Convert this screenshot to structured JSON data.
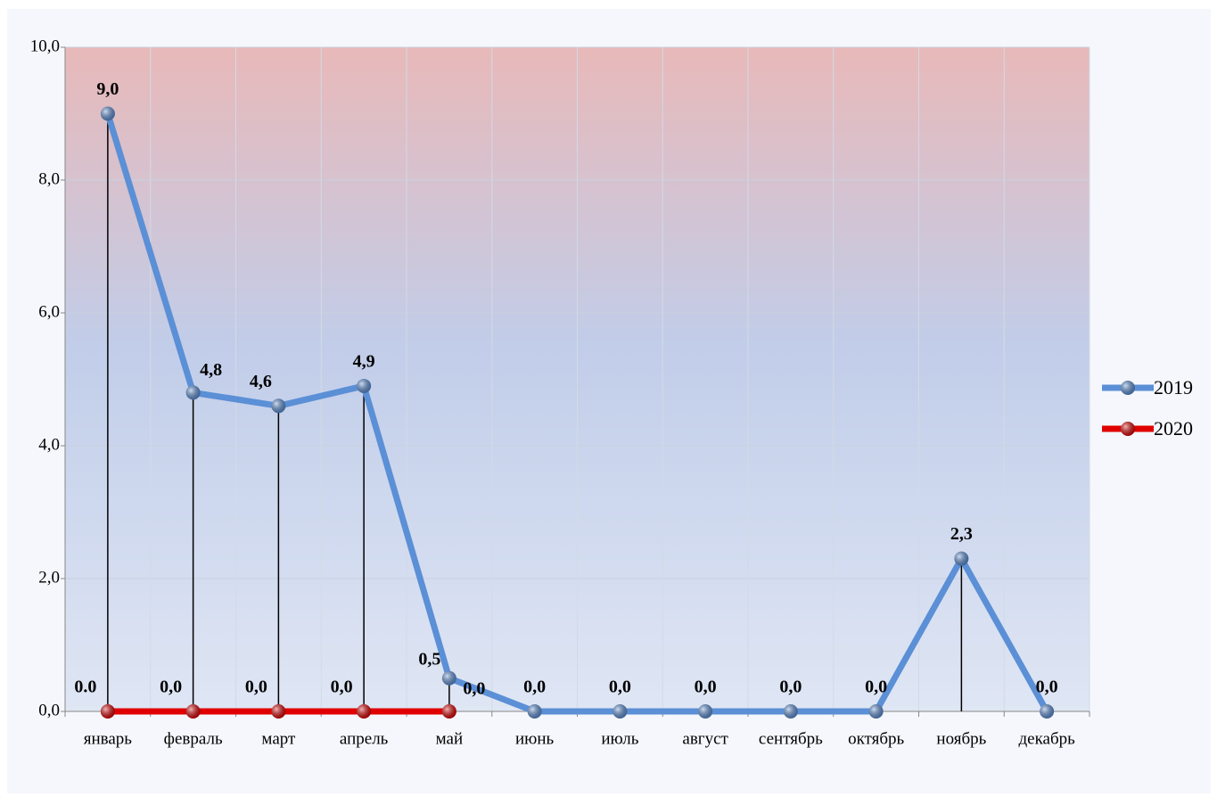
{
  "chart_data": {
    "type": "line",
    "categories": [
      "январь",
      "февраль",
      "март",
      "апрель",
      "май",
      "июнь",
      "июль",
      "август",
      "сентябрь",
      "октябрь",
      "ноябрь",
      "декабрь"
    ],
    "series": [
      {
        "name": "2019",
        "color": "#5b8fd6",
        "values": [
          9.0,
          4.8,
          4.6,
          4.9,
          0.5,
          0.0,
          0.0,
          0.0,
          0.0,
          0.0,
          2.3,
          0.0
        ],
        "value_labels": [
          "9,0",
          "4,8",
          "4,6",
          "4,9",
          "0,5",
          "0,0",
          "0,0",
          "0,0",
          "0,0",
          "0,0",
          "2,3",
          "0,0"
        ]
      },
      {
        "name": "2020",
        "color": "#e00000",
        "values": [
          0.0,
          0.0,
          0.0,
          0.0,
          0.0,
          null,
          null,
          null,
          null,
          null,
          null,
          null
        ],
        "value_labels": [
          "0.0",
          "0,0",
          "0,0",
          "0,0",
          "0,0",
          null,
          null,
          null,
          null,
          null,
          null,
          null
        ]
      }
    ],
    "ylim": [
      0,
      10
    ],
    "yticks": [
      {
        "value": 0,
        "label": "0,0"
      },
      {
        "value": 2,
        "label": "2,0"
      },
      {
        "value": 4,
        "label": "4,0"
      },
      {
        "value": 6,
        "label": "6,0"
      },
      {
        "value": 8,
        "label": "8,0"
      },
      {
        "value": 10,
        "label": "10,0"
      }
    ],
    "grid": true,
    "drop_lines": true,
    "legend": "right"
  }
}
